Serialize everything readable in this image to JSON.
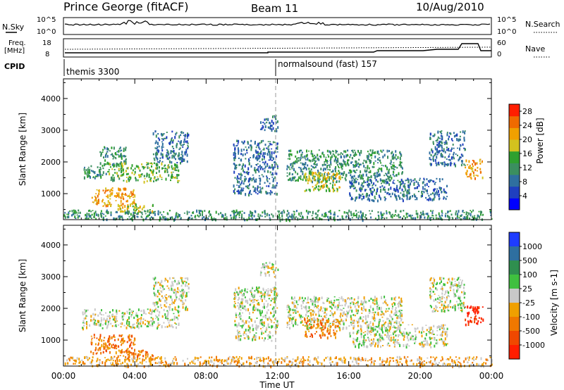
{
  "header": {
    "title": "Prince George (fitACF)",
    "beam": "Beam 11",
    "date": "10/Aug/2010"
  },
  "top_panels": {
    "nsky_label": "N.Sky",
    "nsky_ticks": [
      "10^5",
      "10^0"
    ],
    "nsearch_ticks": [
      "10^5",
      "10^0"
    ],
    "nsearch_label": "N.Search",
    "freq_label_1": "Freq.",
    "freq_label_2": "[MHz]",
    "freq_ticks": [
      "18",
      "8"
    ],
    "nave_ticks": [
      "60",
      "0"
    ],
    "nave_label": "Nave",
    "cpid_label": "CPID",
    "cpid_1": "themis 3300",
    "cpid_2": "normalsound (fast) 157"
  },
  "colors": {
    "power_scale": [
      "#0000ff",
      "#1f3fbf",
      "#2f6f9f",
      "#3b8f5f",
      "#2fa02f",
      "#d2c21e",
      "#f0a000",
      "#f06a00",
      "#ff1e00"
    ],
    "velocity_scale": [
      "#1e3cff",
      "#2e6fa0",
      "#2f8f4f",
      "#3fc03f",
      "#c8c8c8",
      "#f0a000",
      "#f07800",
      "#f04800",
      "#ff1e00"
    ]
  },
  "chart_data": [
    {
      "type": "heatmap",
      "panel": "power",
      "ylabel": "Slant Range [km]",
      "yticks": [
        "4000",
        "3000",
        "2000",
        "1000"
      ],
      "ylim": [
        180,
        4620
      ],
      "xlim": [
        "00:00",
        "24:00"
      ],
      "colorbar_label": "Power [dB]",
      "colorbar_ticks": [
        "28",
        "24",
        "20",
        "16",
        "12",
        "8",
        "4"
      ],
      "colorbar_range": [
        0,
        30
      ],
      "echo_regions": [
        {
          "start": "01:00",
          "end": "02:30",
          "range_km": [
            1500,
            1900
          ],
          "level": 10
        },
        {
          "start": "02:00",
          "end": "03:30",
          "range_km": [
            1900,
            2500
          ],
          "level": 12
        },
        {
          "start": "02:30",
          "end": "06:30",
          "range_km": [
            1400,
            2000
          ],
          "level": 16
        },
        {
          "start": "01:30",
          "end": "04:00",
          "range_km": [
            600,
            1200
          ],
          "level": 22
        },
        {
          "start": "03:00",
          "end": "05:00",
          "range_km": [
            400,
            700
          ],
          "level": 18
        },
        {
          "start": "05:00",
          "end": "07:00",
          "range_km": [
            2000,
            3000
          ],
          "level": 8
        },
        {
          "start": "00:00",
          "end": "24:00",
          "range_km": [
            200,
            500
          ],
          "level": 12
        },
        {
          "start": "09:30",
          "end": "12:00",
          "range_km": [
            1000,
            2700
          ],
          "level": 6
        },
        {
          "start": "11:00",
          "end": "12:00",
          "range_km": [
            3000,
            3500
          ],
          "level": 6
        },
        {
          "start": "12:30",
          "end": "19:00",
          "range_km": [
            1400,
            2400
          ],
          "level": 10
        },
        {
          "start": "13:30",
          "end": "15:30",
          "range_km": [
            1100,
            1700
          ],
          "level": 18
        },
        {
          "start": "16:00",
          "end": "21:30",
          "range_km": [
            800,
            1500
          ],
          "level": 8
        },
        {
          "start": "20:30",
          "end": "22:30",
          "range_km": [
            1900,
            3000
          ],
          "level": 8
        },
        {
          "start": "22:30",
          "end": "23:30",
          "range_km": [
            1500,
            2100
          ],
          "level": 22
        }
      ]
    },
    {
      "type": "heatmap",
      "panel": "velocity",
      "ylabel": "Slant Range [km]",
      "yticks": [
        "4000",
        "3000",
        "2000",
        "1000"
      ],
      "ylim": [
        180,
        4620
      ],
      "xlabel": "Time UT",
      "xticks": [
        "00:00",
        "04:00",
        "08:00",
        "12:00",
        "16:00",
        "20:00",
        "00:00"
      ],
      "xlim": [
        "00:00",
        "24:00"
      ],
      "colorbar_label": "Velocity [m s-1]",
      "colorbar_ticks": [
        "1000",
        "500",
        "100",
        "25",
        "-25",
        "-100",
        "-500",
        "-1000"
      ],
      "echo_regions": [
        {
          "start": "01:00",
          "end": "06:30",
          "range_km": [
            1400,
            2000
          ],
          "velocity": 0
        },
        {
          "start": "01:30",
          "end": "04:00",
          "range_km": [
            600,
            1200
          ],
          "velocity": -200
        },
        {
          "start": "03:00",
          "end": "05:00",
          "range_km": [
            400,
            700
          ],
          "velocity": -100
        },
        {
          "start": "05:00",
          "end": "07:00",
          "range_km": [
            2000,
            3000
          ],
          "velocity": 0
        },
        {
          "start": "00:00",
          "end": "24:00",
          "range_km": [
            200,
            500
          ],
          "velocity": -60
        },
        {
          "start": "09:30",
          "end": "12:00",
          "range_km": [
            1000,
            2700
          ],
          "velocity": 0
        },
        {
          "start": "11:00",
          "end": "12:00",
          "range_km": [
            3000,
            3500
          ],
          "velocity": 0
        },
        {
          "start": "12:30",
          "end": "19:00",
          "range_km": [
            1400,
            2400
          ],
          "velocity": 0
        },
        {
          "start": "13:30",
          "end": "15:30",
          "range_km": [
            1100,
            1700
          ],
          "velocity": -200
        },
        {
          "start": "16:00",
          "end": "21:30",
          "range_km": [
            800,
            1500
          ],
          "velocity": 0
        },
        {
          "start": "20:30",
          "end": "22:30",
          "range_km": [
            1900,
            3000
          ],
          "velocity": 0
        },
        {
          "start": "22:30",
          "end": "23:30",
          "range_km": [
            1500,
            2100
          ],
          "velocity": -1000
        }
      ]
    }
  ]
}
